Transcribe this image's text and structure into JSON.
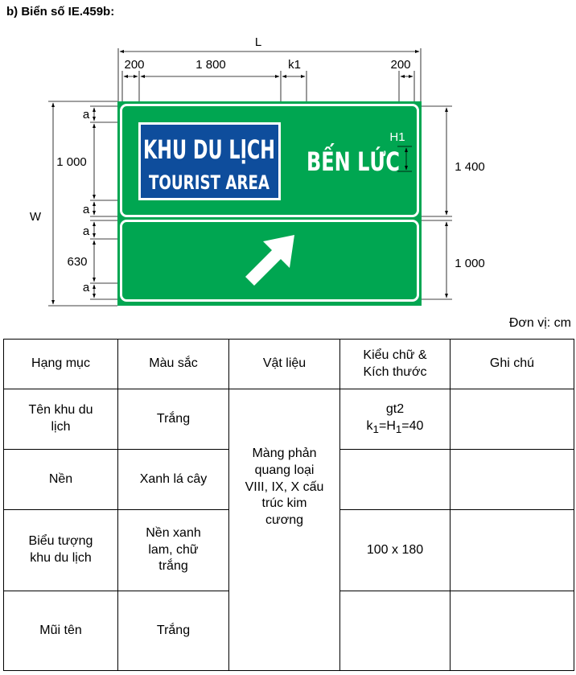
{
  "heading": "b) Biển số IE.459b:",
  "drawing": {
    "dims": {
      "L": "L",
      "w200_left": "200",
      "w1800": "1 800",
      "k1": "k1",
      "w200_right": "200",
      "W": "W",
      "a1": "a",
      "h1000_left": "1 000",
      "a2": "a",
      "a3": "a",
      "h630": "630",
      "a4": "a",
      "h1400": "1 400",
      "h1000_right": "1 000",
      "H1": "H1"
    },
    "sign": {
      "box_line1": "KHU DU LỊCH",
      "box_line2": "TOURIST AREA",
      "destination": "BẾN LỨC",
      "colors": {
        "green": "#00a651",
        "blue": "#0e4d9c",
        "white": "#ffffff"
      },
      "arrow": "arrow-up-right-icon"
    }
  },
  "unit_label": "Đơn vị: cm",
  "table": {
    "headers": {
      "c1": "Hạng mục",
      "c2": "Màu sắc",
      "c3": "Vật liệu",
      "c4_l1": "Kiểu chữ &",
      "c4_l2": "Kích thước",
      "c5": "Ghi chú"
    },
    "rows": [
      {
        "item_l1": "Tên khu du",
        "item_l2": "lịch",
        "color": "Trắng",
        "font_l1": "gt2",
        "font_k": "k",
        "font_sub1": "1",
        "font_eqH": "=H",
        "font_sub2": "1",
        "font_val": "=40",
        "note": ""
      },
      {
        "item": "Nền",
        "color": "Xanh lá cây",
        "font": "",
        "note": ""
      },
      {
        "item_l1": "Biểu tượng",
        "item_l2": "khu du lịch",
        "color_l1": "Nền xanh",
        "color_l2": "lam, chữ",
        "color_l3": "trắng",
        "font": "100 x 180",
        "note": ""
      },
      {
        "item": "Mũi tên",
        "color": "Trắng",
        "font": "",
        "note": ""
      }
    ],
    "material_l1": "Màng phản",
    "material_l2": "quang loại",
    "material_l3": "VIII, IX, X cấu",
    "material_l4": "trúc kim",
    "material_l5": "cương"
  }
}
